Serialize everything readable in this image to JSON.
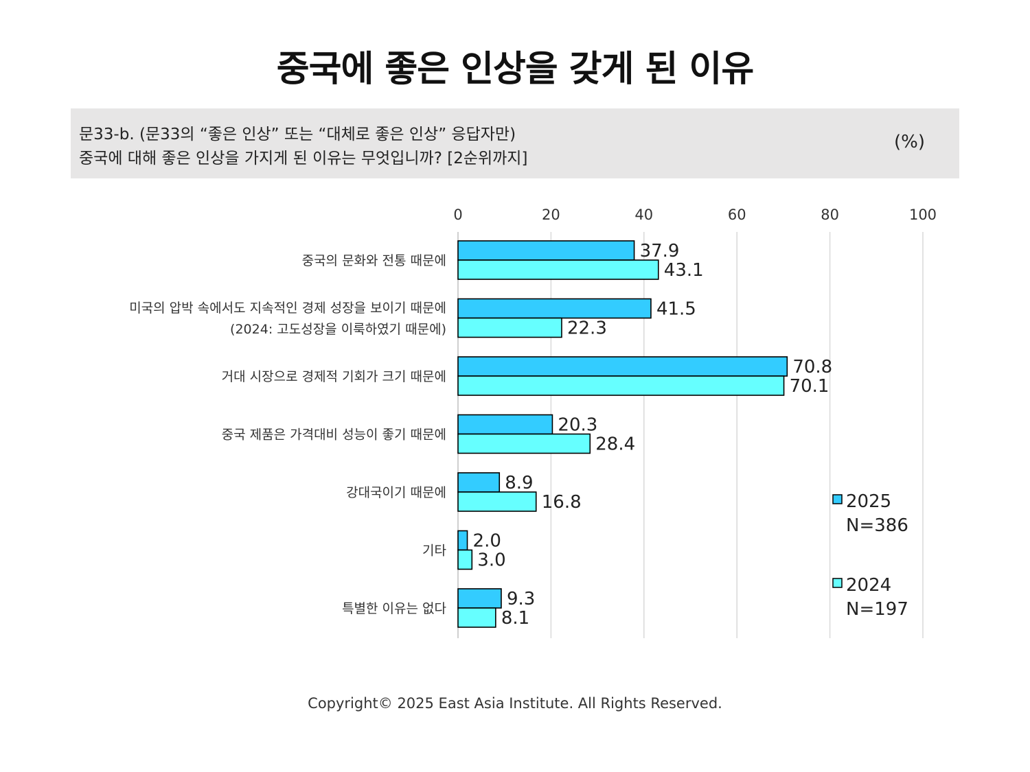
{
  "title": "중국에 좋은 인상을 갖게 된 이유",
  "question": {
    "line1": "문33-b. (문33의 “좋은 인상” 또는 “대체로 좋은 인상” 응답자만)",
    "line2": "중국에 대해 좋은 인상을 가지게 된 이유는 무엇입니까? [2순위까지]",
    "unit": "(%)"
  },
  "chart_data": {
    "type": "bar",
    "orientation": "horizontal",
    "categories": [
      [
        "중국의 문화와 전통 때문에"
      ],
      [
        "미국의 압박 속에서도 지속적인 경제 성장을 보이기 때문에",
        "(2024: 고도성장을 이룩하였기 때문에)"
      ],
      [
        "거대 시장으로 경제적 기회가 크기 때문에"
      ],
      [
        "중국 제품은 가격대비 성능이 좋기 때문에"
      ],
      [
        "강대국이기 때문에"
      ],
      [
        "기타"
      ],
      [
        "특별한 이유는 없다"
      ]
    ],
    "series": [
      {
        "name": "2025",
        "sample": "N=386",
        "color": "#33ccff",
        "values": [
          37.9,
          41.5,
          70.8,
          20.3,
          8.9,
          2.0,
          9.3
        ]
      },
      {
        "name": "2024",
        "sample": "N=197",
        "color": "#66ffff",
        "values": [
          43.1,
          22.3,
          70.1,
          28.4,
          16.8,
          3.0,
          8.1
        ]
      }
    ],
    "xlim": [
      0,
      100
    ],
    "xticks": [
      0,
      20,
      40,
      60,
      80,
      100
    ],
    "grid": true,
    "legend_position": "bottom-right"
  },
  "copyright": "Copyright© 2025 East Asia Institute. All Rights Reserved."
}
